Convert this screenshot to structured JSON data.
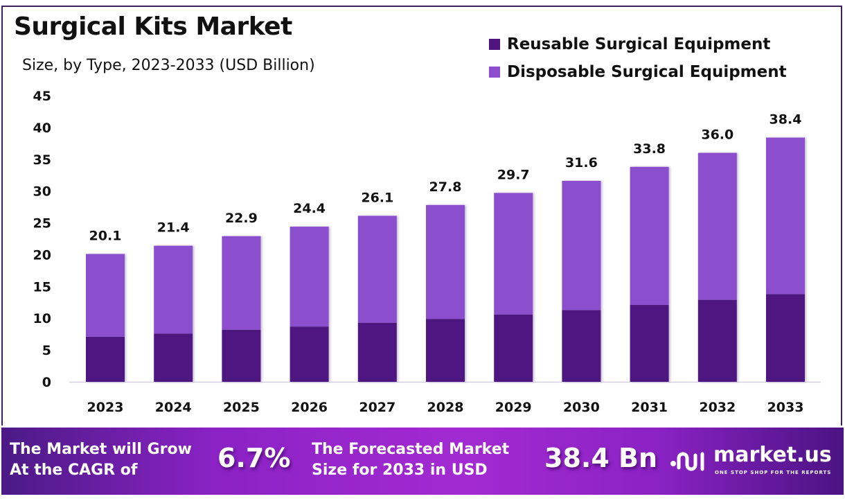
{
  "title": "Surgical Kits Market",
  "subtitle": "Size, by Type, 2023-2033 (USD Billion)",
  "legend": [
    {
      "label": "Reusable Surgical Equipment",
      "color": "#4e1580"
    },
    {
      "label": "Disposable Surgical Equipment",
      "color": "#8b4fce"
    }
  ],
  "chart_data": {
    "type": "bar",
    "stacked": true,
    "title": "Surgical Kits Market",
    "subtitle": "Size, by Type, 2023-2033 (USD Billion)",
    "xlabel": "",
    "ylabel": "",
    "ylim": [
      0,
      45
    ],
    "yticks": [
      0,
      5,
      10,
      15,
      20,
      25,
      30,
      35,
      40,
      45
    ],
    "grid": false,
    "legend_position": "top-right",
    "categories": [
      "2023",
      "2024",
      "2025",
      "2026",
      "2027",
      "2028",
      "2029",
      "2030",
      "2031",
      "2032",
      "2033"
    ],
    "series": [
      {
        "name": "Reusable Surgical Equipment",
        "color": "#4e1580",
        "values": [
          7.1,
          7.6,
          8.2,
          8.7,
          9.3,
          9.9,
          10.6,
          11.3,
          12.1,
          12.9,
          13.8
        ]
      },
      {
        "name": "Disposable Surgical Equipment",
        "color": "#8b4fce",
        "values": [
          13.0,
          13.8,
          14.7,
          15.7,
          16.8,
          17.9,
          19.1,
          20.3,
          21.7,
          23.1,
          24.6
        ]
      }
    ],
    "totals": [
      20.1,
      21.4,
      22.9,
      24.4,
      26.1,
      27.8,
      29.7,
      31.6,
      33.8,
      36.0,
      38.4
    ],
    "total_labels": [
      "20.1",
      "21.4",
      "22.9",
      "24.4",
      "26.1",
      "27.8",
      "29.7",
      "31.6",
      "33.8",
      "36.0",
      "38.4"
    ]
  },
  "banner": {
    "cagr_text_1": "The Market will Grow",
    "cagr_text_2": "At the CAGR of",
    "cagr_value": "6.7%",
    "forecast_text_1": "The Forecasted Market",
    "forecast_text_2": "Size for 2033 in USD",
    "forecast_value": "38.4 Bn",
    "logo_name": "market.us",
    "logo_tagline": "ONE STOP SHOP FOR THE REPORTS"
  }
}
